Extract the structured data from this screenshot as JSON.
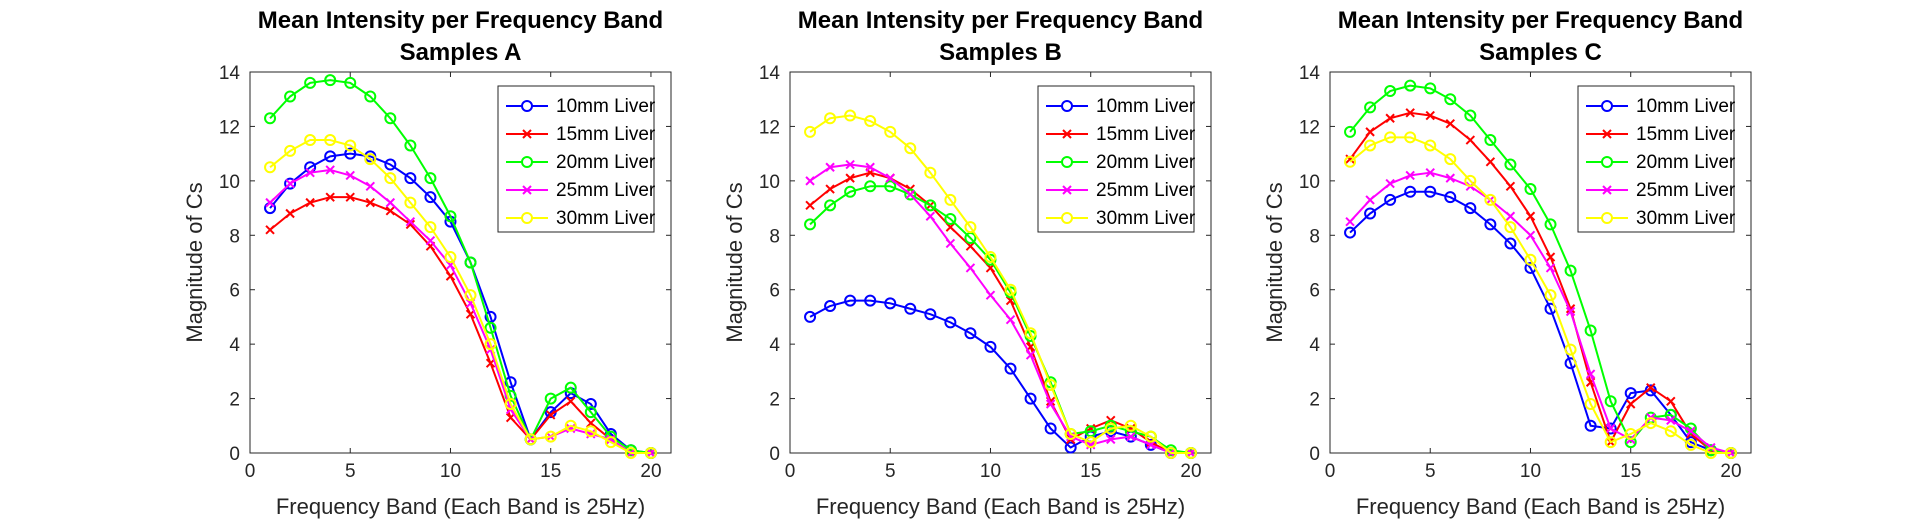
{
  "chart_data": [
    {
      "type": "line",
      "title": "Mean Intensity per Frequency Band",
      "subtitle": "Samples A",
      "xlabel": "Frequency Band (Each Band is 25Hz)",
      "ylabel": "Magnitude of Cs",
      "xlim": [
        0,
        21
      ],
      "ylim": [
        0,
        14
      ],
      "xticks": [
        0,
        5,
        10,
        15,
        20
      ],
      "yticks": [
        0,
        2,
        4,
        6,
        8,
        10,
        12,
        14
      ],
      "grid": false,
      "legend_position": "top-right",
      "x": [
        1,
        2,
        3,
        4,
        5,
        6,
        7,
        8,
        9,
        10,
        11,
        12,
        13,
        14,
        15,
        16,
        17,
        18,
        19,
        20
      ],
      "series": [
        {
          "name": "10mm Liver",
          "color": "#0000ff",
          "marker": "circle",
          "values": [
            9.0,
            9.9,
            10.5,
            10.9,
            11.0,
            10.9,
            10.6,
            10.1,
            9.4,
            8.5,
            7.0,
            5.0,
            2.6,
            0.5,
            1.5,
            2.2,
            1.8,
            0.7,
            0.1,
            0.0
          ]
        },
        {
          "name": "15mm Liver",
          "color": "#ff0000",
          "marker": "x",
          "values": [
            8.2,
            8.8,
            9.2,
            9.4,
            9.4,
            9.2,
            8.9,
            8.4,
            7.6,
            6.5,
            5.1,
            3.3,
            1.3,
            0.5,
            1.4,
            1.9,
            1.1,
            0.5,
            0.0,
            0.0
          ]
        },
        {
          "name": "20mm Liver",
          "color": "#00ff00",
          "marker": "circle",
          "values": [
            12.3,
            13.1,
            13.6,
            13.7,
            13.6,
            13.1,
            12.3,
            11.3,
            10.1,
            8.7,
            7.0,
            4.6,
            2.1,
            0.5,
            2.0,
            2.4,
            1.5,
            0.6,
            0.1,
            0.0
          ]
        },
        {
          "name": "25mm Liver",
          "color": "#ff00ff",
          "marker": "x",
          "values": [
            9.2,
            9.9,
            10.3,
            10.4,
            10.2,
            9.8,
            9.2,
            8.5,
            7.8,
            6.9,
            5.5,
            3.8,
            1.6,
            0.5,
            0.6,
            0.9,
            0.7,
            0.5,
            0.0,
            0.0
          ]
        },
        {
          "name": "30mm Liver",
          "color": "#ffff00",
          "marker": "circle",
          "values": [
            10.5,
            11.1,
            11.5,
            11.5,
            11.3,
            10.8,
            10.1,
            9.2,
            8.3,
            7.2,
            5.8,
            4.0,
            1.8,
            0.5,
            0.6,
            1.0,
            0.8,
            0.4,
            0.0,
            0.0
          ]
        }
      ]
    },
    {
      "type": "line",
      "title": "Mean Intensity per Frequency Band",
      "subtitle": "Samples B",
      "xlabel": "Frequency Band (Each Band is 25Hz)",
      "ylabel": "Magnitude of Cs",
      "xlim": [
        0,
        21
      ],
      "ylim": [
        0,
        14
      ],
      "xticks": [
        0,
        5,
        10,
        15,
        20
      ],
      "yticks": [
        0,
        2,
        4,
        6,
        8,
        10,
        12,
        14
      ],
      "grid": false,
      "legend_position": "top-right",
      "x": [
        1,
        2,
        3,
        4,
        5,
        6,
        7,
        8,
        9,
        10,
        11,
        12,
        13,
        14,
        15,
        16,
        17,
        18,
        19,
        20
      ],
      "series": [
        {
          "name": "10mm Liver",
          "color": "#0000ff",
          "marker": "circle",
          "values": [
            5.0,
            5.4,
            5.6,
            5.6,
            5.5,
            5.3,
            5.1,
            4.8,
            4.4,
            3.9,
            3.1,
            2.0,
            0.9,
            0.2,
            0.6,
            0.8,
            0.6,
            0.3,
            0.0,
            0.0
          ]
        },
        {
          "name": "15mm Liver",
          "color": "#ff0000",
          "marker": "x",
          "values": [
            9.1,
            9.7,
            10.1,
            10.3,
            10.1,
            9.7,
            9.1,
            8.3,
            7.6,
            6.8,
            5.6,
            3.9,
            1.9,
            0.5,
            0.9,
            1.2,
            0.9,
            0.4,
            0.0,
            0.0
          ]
        },
        {
          "name": "20mm Liver",
          "color": "#00ff00",
          "marker": "circle",
          "values": [
            8.4,
            9.1,
            9.6,
            9.8,
            9.8,
            9.5,
            9.1,
            8.6,
            7.9,
            7.1,
            5.9,
            4.3,
            2.6,
            0.7,
            0.8,
            1.0,
            0.8,
            0.6,
            0.1,
            0.0
          ]
        },
        {
          "name": "25mm Liver",
          "color": "#ff00ff",
          "marker": "x",
          "values": [
            10.0,
            10.5,
            10.6,
            10.5,
            10.1,
            9.5,
            8.7,
            7.7,
            6.8,
            5.8,
            4.9,
            3.6,
            1.8,
            0.6,
            0.3,
            0.5,
            0.6,
            0.3,
            0.0,
            0.0
          ]
        },
        {
          "name": "30mm Liver",
          "color": "#ffff00",
          "marker": "circle",
          "values": [
            11.8,
            12.3,
            12.4,
            12.2,
            11.8,
            11.2,
            10.3,
            9.3,
            8.3,
            7.2,
            6.0,
            4.4,
            2.5,
            0.7,
            0.4,
            0.9,
            1.0,
            0.6,
            0.0,
            0.0
          ]
        }
      ]
    },
    {
      "type": "line",
      "title": "Mean Intensity per Frequency Band",
      "subtitle": "Samples C",
      "xlabel": "Frequency Band (Each Band is 25Hz)",
      "ylabel": "Magnitude of Cs",
      "xlim": [
        0,
        21
      ],
      "ylim": [
        0,
        14
      ],
      "xticks": [
        0,
        5,
        10,
        15,
        20
      ],
      "yticks": [
        0,
        2,
        4,
        6,
        8,
        10,
        12,
        14
      ],
      "grid": false,
      "legend_position": "top-right",
      "x": [
        1,
        2,
        3,
        4,
        5,
        6,
        7,
        8,
        9,
        10,
        11,
        12,
        13,
        14,
        15,
        16,
        17,
        18,
        19,
        20
      ],
      "series": [
        {
          "name": "10mm Liver",
          "color": "#0000ff",
          "marker": "circle",
          "values": [
            8.1,
            8.8,
            9.3,
            9.6,
            9.6,
            9.4,
            9.0,
            8.4,
            7.7,
            6.8,
            5.3,
            3.3,
            1.0,
            0.9,
            2.2,
            2.3,
            1.4,
            0.4,
            0.1,
            0.0
          ]
        },
        {
          "name": "15mm Liver",
          "color": "#ff0000",
          "marker": "x",
          "values": [
            10.8,
            11.8,
            12.3,
            12.5,
            12.4,
            12.1,
            11.5,
            10.7,
            9.8,
            8.7,
            7.2,
            5.3,
            2.6,
            0.4,
            1.8,
            2.4,
            1.9,
            0.7,
            0.1,
            0.0
          ]
        },
        {
          "name": "20mm Liver",
          "color": "#00ff00",
          "marker": "circle",
          "values": [
            11.8,
            12.7,
            13.3,
            13.5,
            13.4,
            13.0,
            12.4,
            11.5,
            10.6,
            9.7,
            8.4,
            6.7,
            4.5,
            1.9,
            0.4,
            1.3,
            1.4,
            0.9,
            0.1,
            0.0
          ]
        },
        {
          "name": "25mm Liver",
          "color": "#ff00ff",
          "marker": "x",
          "values": [
            8.5,
            9.3,
            9.9,
            10.2,
            10.3,
            10.1,
            9.8,
            9.3,
            8.7,
            8.0,
            6.8,
            5.2,
            2.9,
            0.9,
            0.5,
            1.3,
            1.2,
            0.8,
            0.2,
            0.0
          ]
        },
        {
          "name": "30mm Liver",
          "color": "#ffff00",
          "marker": "circle",
          "values": [
            10.7,
            11.3,
            11.6,
            11.6,
            11.3,
            10.8,
            10.0,
            9.3,
            8.3,
            7.1,
            5.8,
            3.8,
            1.8,
            0.4,
            0.7,
            1.1,
            0.8,
            0.3,
            0.0,
            0.0
          ]
        }
      ]
    }
  ]
}
